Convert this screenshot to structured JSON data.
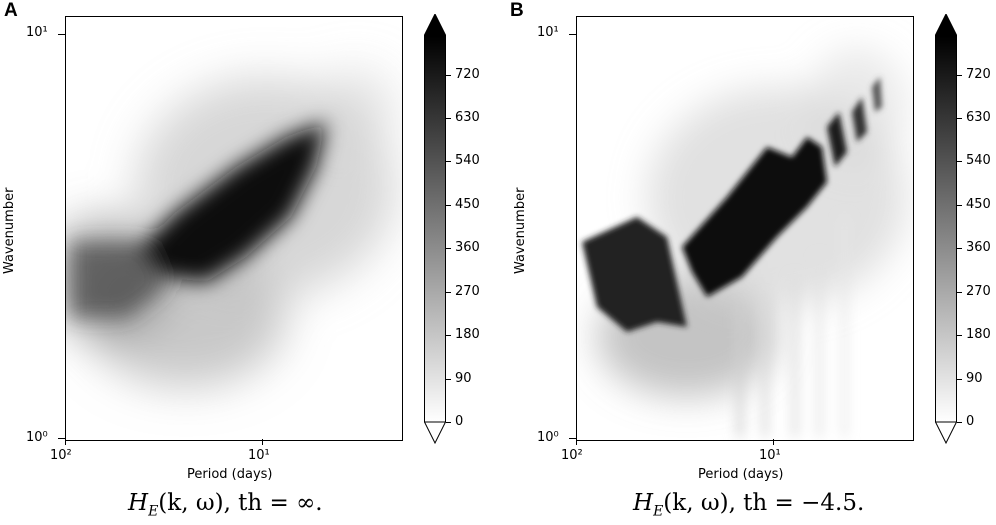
{
  "chart_data": [
    {
      "panel": "A",
      "type": "heatmap",
      "xlabel": "Period (days)",
      "ylabel": "Wavenumber",
      "x_ticks": [
        "10²",
        "10¹"
      ],
      "y_ticks": [
        "10¹",
        "10⁰"
      ],
      "xscale": "log",
      "yscale": "log",
      "xlim_days": [
        100,
        2
      ],
      "ylim": [
        1,
        11
      ],
      "colorbar": {
        "ticks": [
          0,
          90,
          180,
          270,
          360,
          450,
          540,
          630,
          720
        ],
        "extend": "both",
        "cmap": "gray_r"
      },
      "caption": {
        "expr": "H",
        "sub": "E",
        "args": "(k, ω)",
        "rest": ", th = ∞."
      }
    },
    {
      "panel": "B",
      "type": "heatmap",
      "xlabel": "Period (days)",
      "ylabel": "Wavenumber",
      "x_ticks": [
        "10²",
        "10¹"
      ],
      "y_ticks": [
        "10¹",
        "10⁰"
      ],
      "xscale": "log",
      "yscale": "log",
      "xlim_days": [
        100,
        2
      ],
      "ylim": [
        1,
        11
      ],
      "colorbar": {
        "ticks": [
          0,
          90,
          180,
          270,
          360,
          450,
          540,
          630,
          720
        ],
        "extend": "both",
        "cmap": "gray_r"
      },
      "caption": {
        "expr": "H",
        "sub": "E",
        "args": "(k, ω)",
        "rest": ", th = −4.5."
      }
    }
  ]
}
